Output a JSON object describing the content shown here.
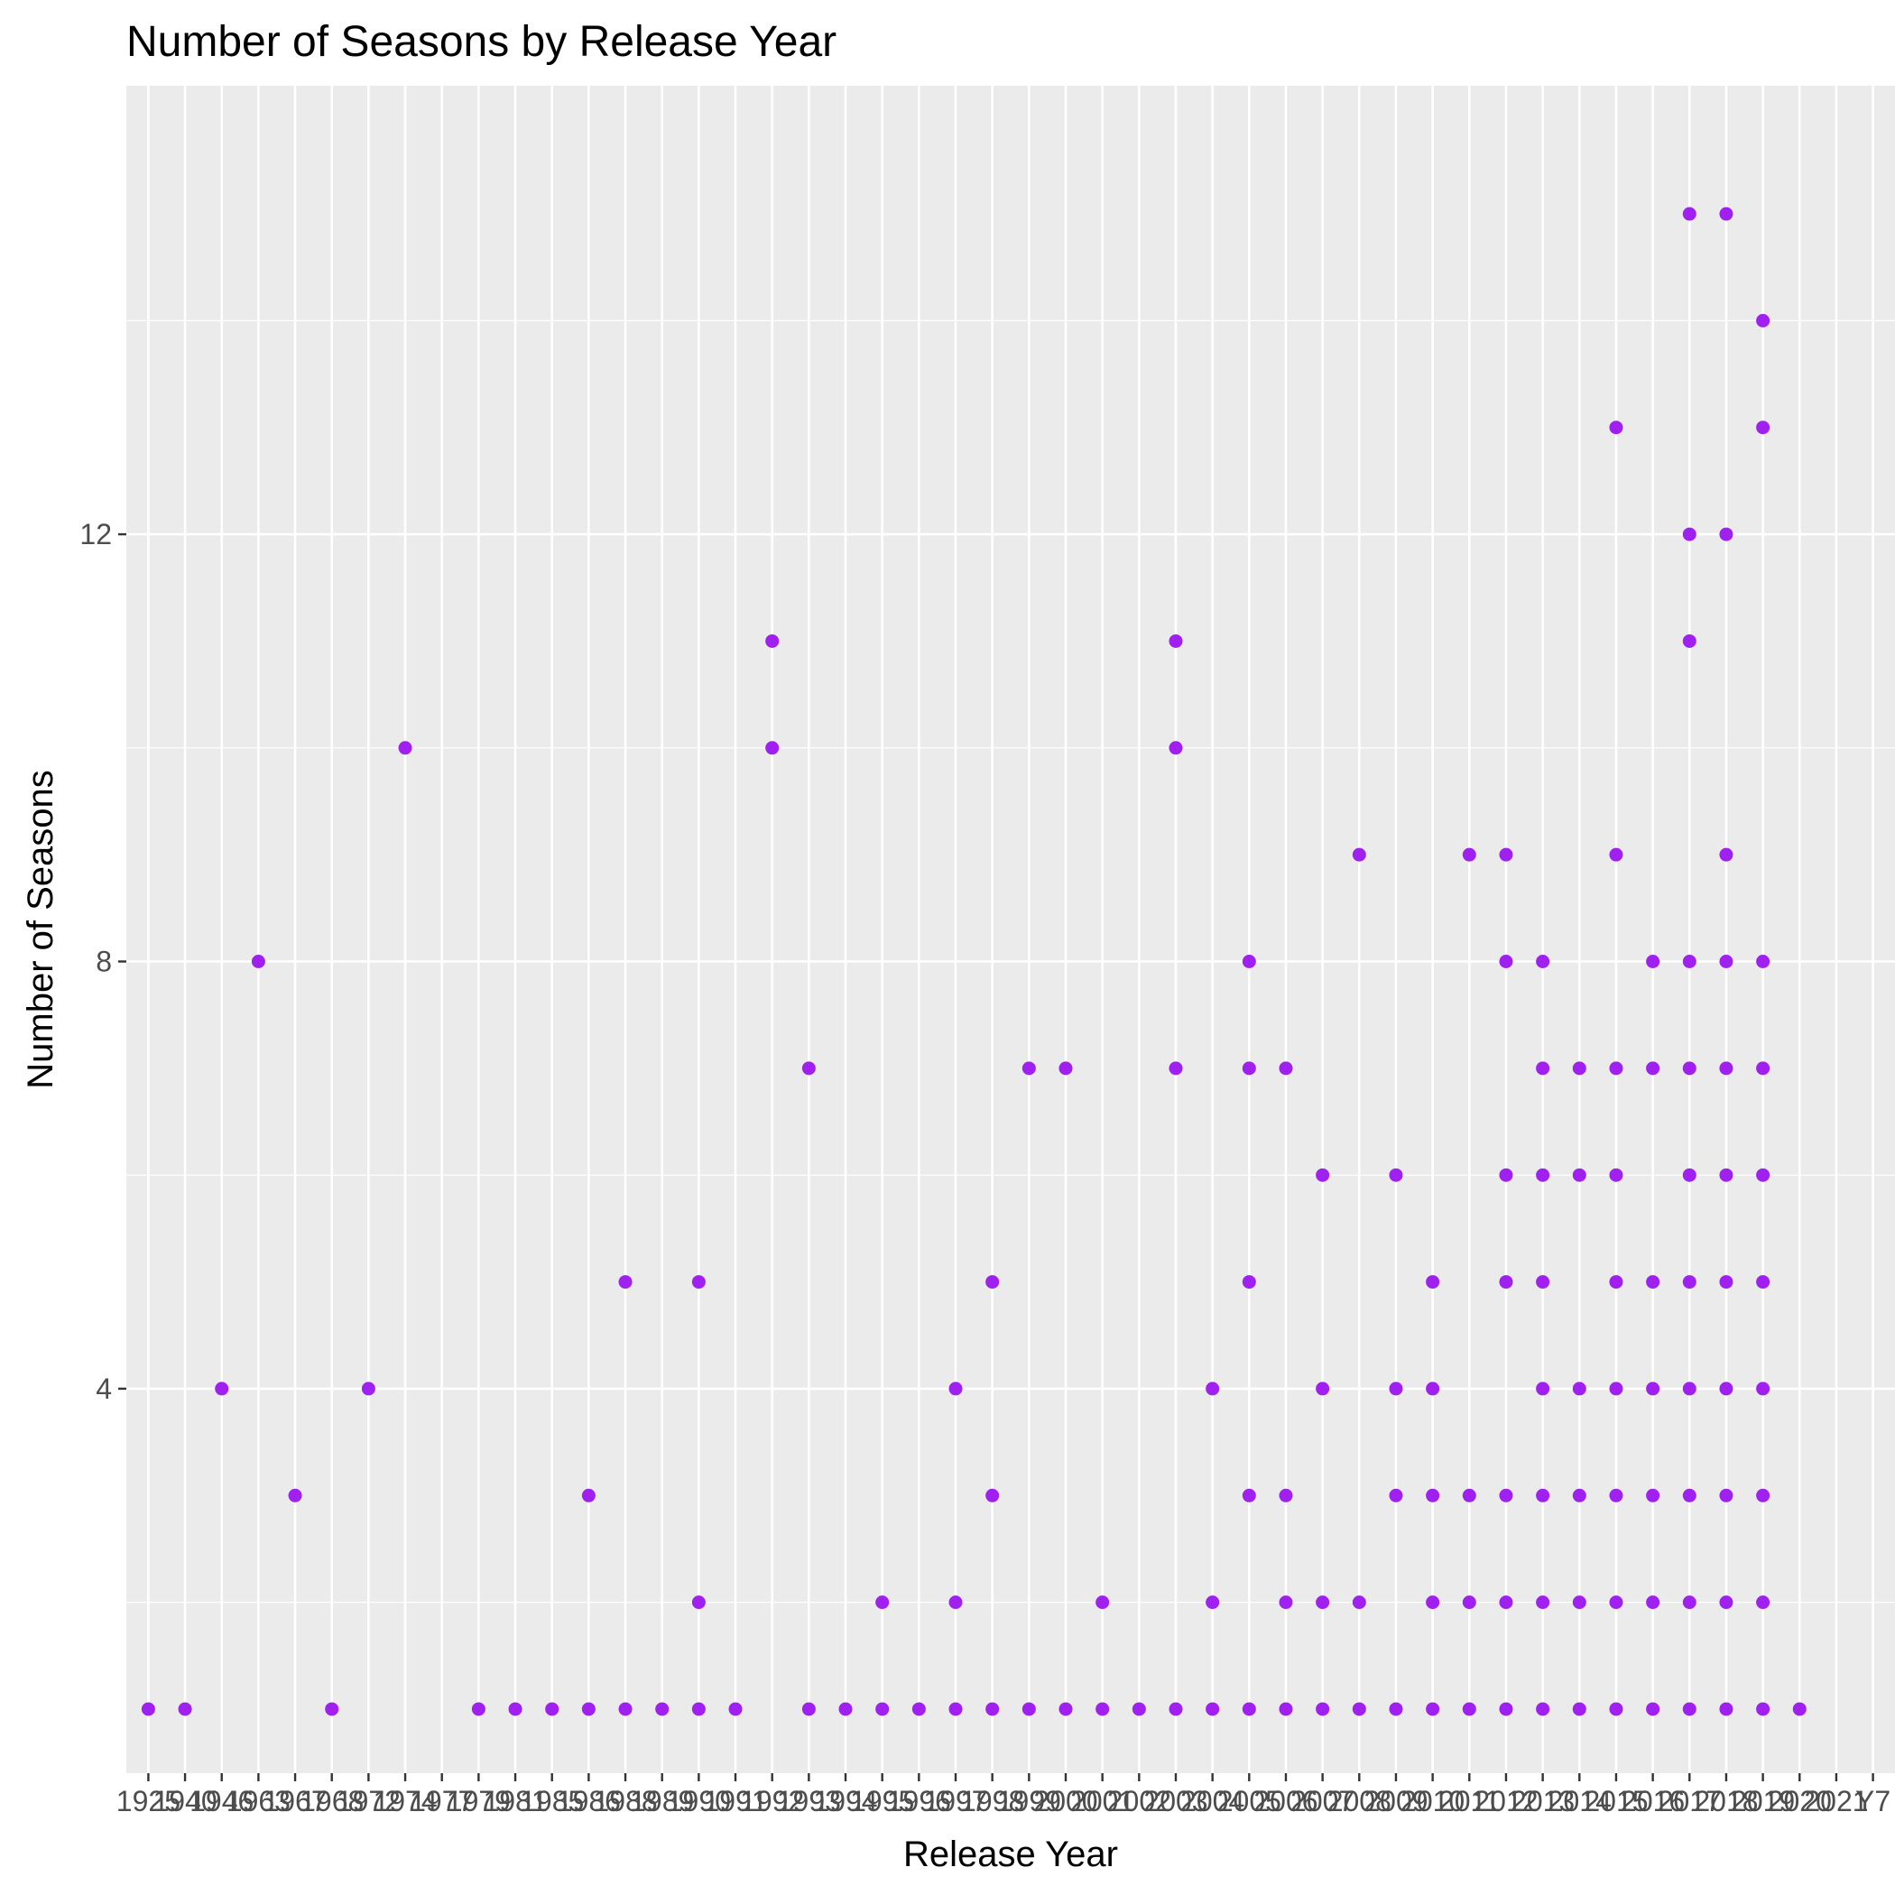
{
  "chart_data": {
    "type": "scatter",
    "title": "Number of Seasons by Release Year",
    "xlabel": "Release Year",
    "ylabel": "Number of Seasons",
    "x_categories": [
      "1925",
      "1940",
      "1946",
      "1963",
      "1967",
      "1968",
      "1972",
      "1974",
      "1977",
      "1979",
      "1981",
      "1985",
      "1986",
      "1988",
      "1989",
      "1990",
      "1991",
      "1992",
      "1993",
      "1994",
      "1995",
      "1996",
      "1997",
      "1998",
      "1999",
      "2000",
      "2001",
      "2002",
      "2003",
      "2004",
      "2005",
      "2006",
      "2007",
      "2008",
      "2009",
      "2010",
      "2011",
      "2012",
      "2013",
      "2014",
      "2015",
      "2016",
      "2017",
      "2018",
      "2019",
      "2020",
      "2021",
      "Y7"
    ],
    "y_ticks": [
      4,
      8,
      12
    ],
    "ylim": [
      0.4,
      16.2
    ],
    "grid": true,
    "point_color": "#A020F0",
    "panel_color": "#EBEBEB",
    "points": [
      {
        "x": "1925",
        "y": 1
      },
      {
        "x": "1940",
        "y": 1
      },
      {
        "x": "1946",
        "y": 4
      },
      {
        "x": "1963",
        "y": 8
      },
      {
        "x": "1967",
        "y": 3
      },
      {
        "x": "1968",
        "y": 1
      },
      {
        "x": "1972",
        "y": 4
      },
      {
        "x": "1974",
        "y": 10
      },
      {
        "x": "1979",
        "y": 1
      },
      {
        "x": "1981",
        "y": 1
      },
      {
        "x": "1985",
        "y": 1
      },
      {
        "x": "1986",
        "y": 1
      },
      {
        "x": "1986",
        "y": 3
      },
      {
        "x": "1988",
        "y": 1
      },
      {
        "x": "1988",
        "y": 5
      },
      {
        "x": "1989",
        "y": 1
      },
      {
        "x": "1990",
        "y": 1
      },
      {
        "x": "1990",
        "y": 2
      },
      {
        "x": "1990",
        "y": 5
      },
      {
        "x": "1991",
        "y": 1
      },
      {
        "x": "1992",
        "y": 10
      },
      {
        "x": "1992",
        "y": 11
      },
      {
        "x": "1993",
        "y": 1
      },
      {
        "x": "1993",
        "y": 7
      },
      {
        "x": "1994",
        "y": 1
      },
      {
        "x": "1995",
        "y": 1
      },
      {
        "x": "1995",
        "y": 2
      },
      {
        "x": "1996",
        "y": 1
      },
      {
        "x": "1997",
        "y": 1
      },
      {
        "x": "1997",
        "y": 2
      },
      {
        "x": "1997",
        "y": 4
      },
      {
        "x": "1998",
        "y": 1
      },
      {
        "x": "1998",
        "y": 3
      },
      {
        "x": "1998",
        "y": 5
      },
      {
        "x": "1999",
        "y": 1
      },
      {
        "x": "1999",
        "y": 7
      },
      {
        "x": "2000",
        "y": 1
      },
      {
        "x": "2000",
        "y": 7
      },
      {
        "x": "2001",
        "y": 1
      },
      {
        "x": "2001",
        "y": 2
      },
      {
        "x": "2002",
        "y": 1
      },
      {
        "x": "2003",
        "y": 1
      },
      {
        "x": "2003",
        "y": 7
      },
      {
        "x": "2003",
        "y": 10
      },
      {
        "x": "2003",
        "y": 11
      },
      {
        "x": "2004",
        "y": 1
      },
      {
        "x": "2004",
        "y": 2
      },
      {
        "x": "2004",
        "y": 4
      },
      {
        "x": "2005",
        "y": 1
      },
      {
        "x": "2005",
        "y": 3
      },
      {
        "x": "2005",
        "y": 5
      },
      {
        "x": "2005",
        "y": 7
      },
      {
        "x": "2005",
        "y": 8
      },
      {
        "x": "2006",
        "y": 1
      },
      {
        "x": "2006",
        "y": 2
      },
      {
        "x": "2006",
        "y": 3
      },
      {
        "x": "2006",
        "y": 7
      },
      {
        "x": "2007",
        "y": 1
      },
      {
        "x": "2007",
        "y": 2
      },
      {
        "x": "2007",
        "y": 4
      },
      {
        "x": "2007",
        "y": 6
      },
      {
        "x": "2008",
        "y": 1
      },
      {
        "x": "2008",
        "y": 2
      },
      {
        "x": "2008",
        "y": 9
      },
      {
        "x": "2009",
        "y": 1
      },
      {
        "x": "2009",
        "y": 3
      },
      {
        "x": "2009",
        "y": 4
      },
      {
        "x": "2009",
        "y": 6
      },
      {
        "x": "2010",
        "y": 1
      },
      {
        "x": "2010",
        "y": 2
      },
      {
        "x": "2010",
        "y": 3
      },
      {
        "x": "2010",
        "y": 4
      },
      {
        "x": "2010",
        "y": 5
      },
      {
        "x": "2011",
        "y": 1
      },
      {
        "x": "2011",
        "y": 2
      },
      {
        "x": "2011",
        "y": 3
      },
      {
        "x": "2011",
        "y": 9
      },
      {
        "x": "2012",
        "y": 1
      },
      {
        "x": "2012",
        "y": 2
      },
      {
        "x": "2012",
        "y": 3
      },
      {
        "x": "2012",
        "y": 5
      },
      {
        "x": "2012",
        "y": 6
      },
      {
        "x": "2012",
        "y": 8
      },
      {
        "x": "2012",
        "y": 9
      },
      {
        "x": "2013",
        "y": 1
      },
      {
        "x": "2013",
        "y": 2
      },
      {
        "x": "2013",
        "y": 3
      },
      {
        "x": "2013",
        "y": 4
      },
      {
        "x": "2013",
        "y": 5
      },
      {
        "x": "2013",
        "y": 6
      },
      {
        "x": "2013",
        "y": 7
      },
      {
        "x": "2013",
        "y": 8
      },
      {
        "x": "2014",
        "y": 1
      },
      {
        "x": "2014",
        "y": 2
      },
      {
        "x": "2014",
        "y": 3
      },
      {
        "x": "2014",
        "y": 4
      },
      {
        "x": "2014",
        "y": 6
      },
      {
        "x": "2014",
        "y": 7
      },
      {
        "x": "2015",
        "y": 1
      },
      {
        "x": "2015",
        "y": 2
      },
      {
        "x": "2015",
        "y": 3
      },
      {
        "x": "2015",
        "y": 4
      },
      {
        "x": "2015",
        "y": 5
      },
      {
        "x": "2015",
        "y": 6
      },
      {
        "x": "2015",
        "y": 7
      },
      {
        "x": "2015",
        "y": 9
      },
      {
        "x": "2015",
        "y": 13
      },
      {
        "x": "2016",
        "y": 1
      },
      {
        "x": "2016",
        "y": 2
      },
      {
        "x": "2016",
        "y": 3
      },
      {
        "x": "2016",
        "y": 4
      },
      {
        "x": "2016",
        "y": 5
      },
      {
        "x": "2016",
        "y": 7
      },
      {
        "x": "2016",
        "y": 8
      },
      {
        "x": "2017",
        "y": 1
      },
      {
        "x": "2017",
        "y": 2
      },
      {
        "x": "2017",
        "y": 3
      },
      {
        "x": "2017",
        "y": 4
      },
      {
        "x": "2017",
        "y": 5
      },
      {
        "x": "2017",
        "y": 6
      },
      {
        "x": "2017",
        "y": 7
      },
      {
        "x": "2017",
        "y": 8
      },
      {
        "x": "2017",
        "y": 11
      },
      {
        "x": "2017",
        "y": 12
      },
      {
        "x": "2017",
        "y": 15
      },
      {
        "x": "2018",
        "y": 1
      },
      {
        "x": "2018",
        "y": 2
      },
      {
        "x": "2018",
        "y": 3
      },
      {
        "x": "2018",
        "y": 4
      },
      {
        "x": "2018",
        "y": 5
      },
      {
        "x": "2018",
        "y": 6
      },
      {
        "x": "2018",
        "y": 7
      },
      {
        "x": "2018",
        "y": 8
      },
      {
        "x": "2018",
        "y": 9
      },
      {
        "x": "2018",
        "y": 12
      },
      {
        "x": "2018",
        "y": 15
      },
      {
        "x": "2019",
        "y": 1
      },
      {
        "x": "2019",
        "y": 2
      },
      {
        "x": "2019",
        "y": 3
      },
      {
        "x": "2019",
        "y": 4
      },
      {
        "x": "2019",
        "y": 5
      },
      {
        "x": "2019",
        "y": 6
      },
      {
        "x": "2019",
        "y": 7
      },
      {
        "x": "2019",
        "y": 8
      },
      {
        "x": "2019",
        "y": 13
      },
      {
        "x": "2019",
        "y": 14
      },
      {
        "x": "2020",
        "y": 1
      }
    ]
  }
}
